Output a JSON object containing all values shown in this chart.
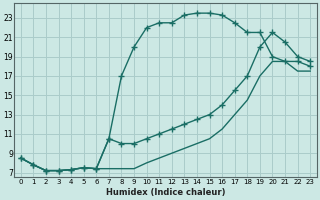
{
  "xlabel": "Humidex (Indice chaleur)",
  "bg_color": "#cce8e4",
  "grid_color": "#aaccca",
  "line_color": "#1a6e65",
  "xlim": [
    -0.5,
    23.5
  ],
  "ylim": [
    6.5,
    24.5
  ],
  "xticks": [
    0,
    1,
    2,
    3,
    4,
    5,
    6,
    7,
    8,
    9,
    10,
    11,
    12,
    13,
    14,
    15,
    16,
    17,
    18,
    19,
    20,
    21,
    22,
    23
  ],
  "yticks": [
    7,
    9,
    11,
    13,
    15,
    17,
    19,
    21,
    23
  ],
  "curve_peaked_x": [
    0,
    1,
    2,
    3,
    4,
    5,
    6,
    7,
    8,
    9,
    10,
    11,
    12,
    13,
    14,
    15,
    16,
    17,
    18,
    19,
    20,
    21,
    22,
    23
  ],
  "curve_peaked_y": [
    8.5,
    7.8,
    7.2,
    7.2,
    7.3,
    7.5,
    7.4,
    10.5,
    17.0,
    20.0,
    22.0,
    22.5,
    22.5,
    23.3,
    23.5,
    23.5,
    23.3,
    22.5,
    21.5,
    21.5,
    19.0,
    18.5,
    18.5,
    18.0
  ],
  "curve_mid_x": [
    0,
    1,
    2,
    3,
    4,
    5,
    6,
    7,
    8,
    9,
    10,
    11,
    12,
    13,
    14,
    15,
    16,
    17,
    18,
    19,
    20,
    21,
    22,
    23
  ],
  "curve_mid_y": [
    8.5,
    7.8,
    7.2,
    7.2,
    7.3,
    7.5,
    7.4,
    10.5,
    10.0,
    10.0,
    10.5,
    11.0,
    11.5,
    12.0,
    12.5,
    13.0,
    14.0,
    15.5,
    17.0,
    20.0,
    21.5,
    20.5,
    19.0,
    18.5
  ],
  "curve_low_x": [
    0,
    1,
    2,
    3,
    4,
    5,
    6,
    7,
    8,
    9,
    10,
    11,
    12,
    13,
    14,
    15,
    16,
    17,
    18,
    19,
    20,
    21,
    22,
    23
  ],
  "curve_low_y": [
    8.5,
    7.8,
    7.2,
    7.2,
    7.3,
    7.5,
    7.4,
    7.4,
    7.4,
    7.4,
    8.0,
    8.5,
    9.0,
    9.5,
    10.0,
    10.5,
    11.5,
    13.0,
    14.5,
    17.0,
    18.5,
    18.5,
    17.5,
    17.5
  ],
  "marker_style": "+",
  "marker_size": 4,
  "line_width": 1.0
}
